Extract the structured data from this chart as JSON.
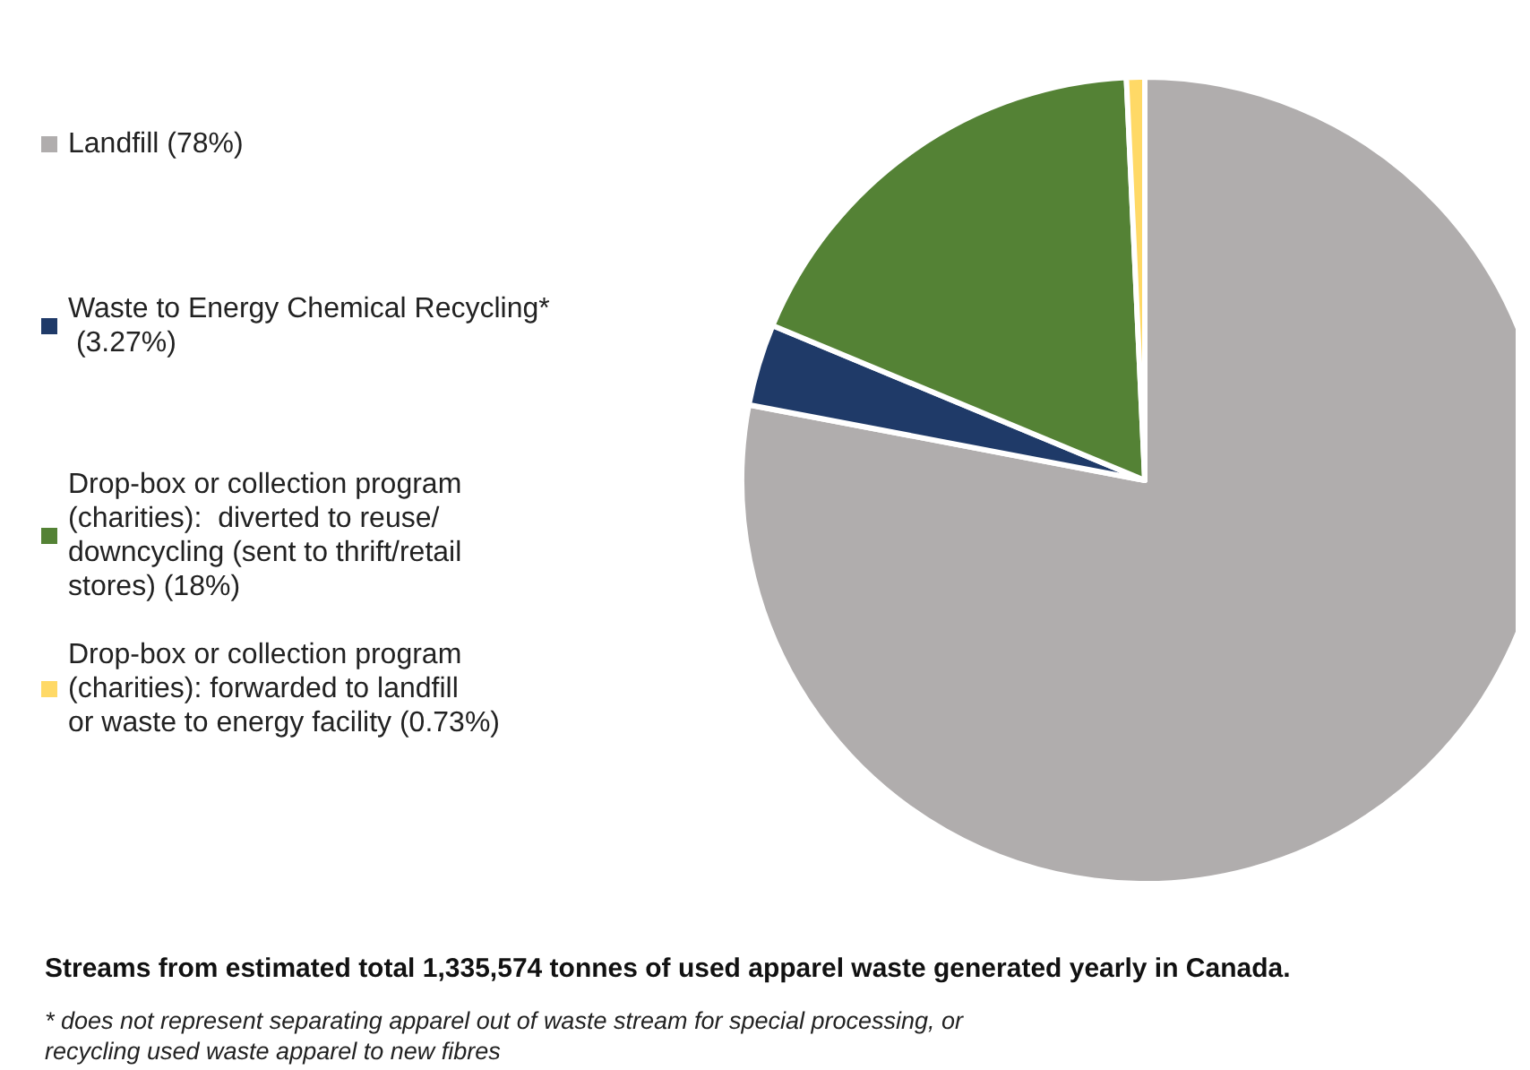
{
  "chart_data": {
    "type": "pie",
    "title": "Streams from estimated total 1,335,574 tonnes of used apparel waste generated yearly in Canada.",
    "categories": [
      "Landfill (78%)",
      "Waste to Energy Chemical Recycling* (3.27%)",
      "Drop-box or collection program (charities):  diverted to reuse/downcycling (sent to thrift/retail stores) (18%)",
      "Drop-box or collection program (charities): forwarded to landfill or waste to energy facility (0.73%)"
    ],
    "values": [
      78,
      3.27,
      18,
      0.73
    ],
    "colors": [
      "#b0adad",
      "#1f3a68",
      "#548235",
      "#ffd966"
    ],
    "legend": "left",
    "annotations": [
      "* does not represent separating apparel out of waste stream for special processing, or recycling used waste apparel to new fibres"
    ]
  }
}
